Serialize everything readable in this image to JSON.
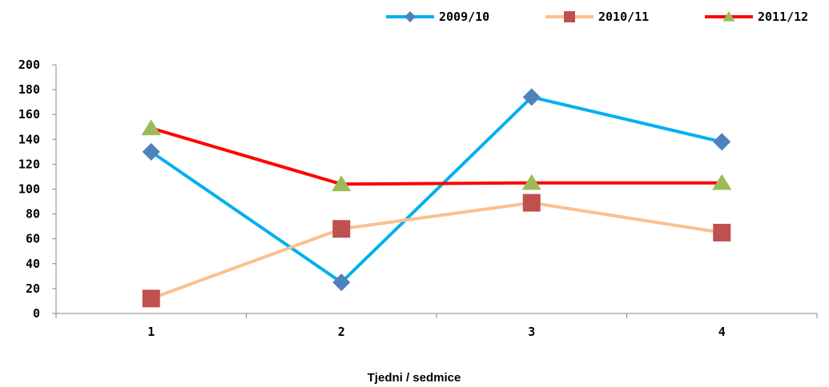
{
  "chart_data": {
    "type": "line",
    "categories": [
      "1",
      "2",
      "3",
      "4"
    ],
    "series": [
      {
        "name": "2009/10",
        "values": [
          130,
          25,
          174,
          138
        ],
        "color": "#00b0f0",
        "marker": "diamond",
        "marker_color": "#4f81bd"
      },
      {
        "name": "2010/11",
        "values": [
          12,
          68,
          89,
          65
        ],
        "color": "#fac090",
        "marker": "square",
        "marker_color": "#c0504d"
      },
      {
        "name": "2011/12",
        "values": [
          149,
          104,
          105,
          105
        ],
        "color": "#ff0000",
        "marker": "triangle",
        "marker_color": "#9bbb59"
      }
    ],
    "xlabel": "Tjedni / sedmice",
    "ylabel": "",
    "ylim": [
      0,
      200
    ],
    "yticks": [
      0,
      20,
      40,
      60,
      80,
      100,
      120,
      140,
      160,
      180,
      200
    ],
    "grid": false,
    "legend_position": "top-right"
  }
}
